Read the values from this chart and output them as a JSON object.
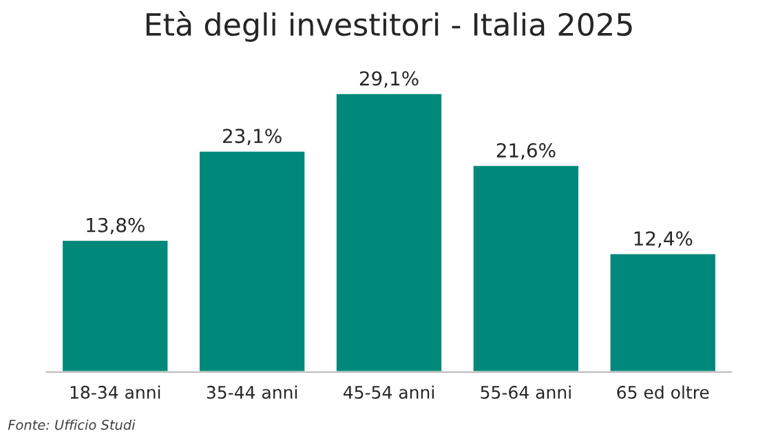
{
  "chart_data": {
    "type": "bar",
    "title": "Età degli investitori - Italia 2025",
    "categories": [
      "18-34 anni",
      "35-44 anni",
      "45-54 anni",
      "55-64 anni",
      "65 ed oltre"
    ],
    "values": [
      13.8,
      23.1,
      29.1,
      21.6,
      12.4
    ],
    "value_labels": [
      "13,8%",
      "23,1%",
      "29,1%",
      "21,6%",
      "12,4%"
    ],
    "color": "#00897b",
    "annotations": [
      "Fonte: Ufficio Studi"
    ],
    "grid": false,
    "legend": false
  }
}
